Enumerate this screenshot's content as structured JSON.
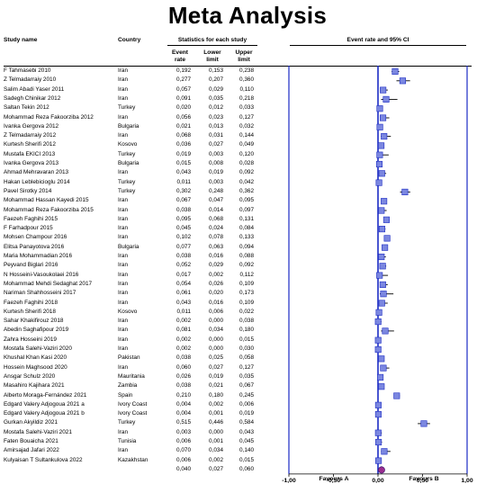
{
  "title": "Meta Analysis",
  "headers": {
    "study": "Study name",
    "country": "Country",
    "stats_group": "Statistics for each study",
    "event_rate": "Event rate",
    "lower": "Lower limit",
    "upper": "Upper limit",
    "forest": "Event rate and 95% CI"
  },
  "axis": {
    "xlim": [
      -1.0,
      1.0
    ],
    "ticks": [
      "-1,00",
      "-0,50",
      "0,00",
      "0,50",
      "1,00"
    ],
    "tick_values": [
      -1.0,
      -0.5,
      0.0,
      0.5,
      1.0
    ]
  },
  "favours": {
    "left": "Favours A",
    "right": "Favours B"
  },
  "colors": {
    "study_marker": "#7b87e0",
    "pooled_marker": "#9b2d8f",
    "zero_line": "#1b2bc4"
  },
  "chart_data": {
    "type": "forest",
    "title": "Meta Analysis",
    "xlabel": "Event rate and 95% CI",
    "xlim": [
      -1.0,
      1.0
    ],
    "studies": [
      {
        "name": "F Tahmasebi 2010",
        "country": "Iran",
        "rate": 0.192,
        "lower": 0.153,
        "upper": 0.238,
        "rate_s": "0,192",
        "lower_s": "0,153",
        "upper_s": "0,238"
      },
      {
        "name": "Z Telmadarraiy 2010",
        "country": "Iran",
        "rate": 0.277,
        "lower": 0.207,
        "upper": 0.36,
        "rate_s": "0,277",
        "lower_s": "0,207",
        "upper_s": "0,360"
      },
      {
        "name": "Salim Abadi Yaser 2011",
        "country": "Iran",
        "rate": 0.057,
        "lower": 0.029,
        "upper": 0.11,
        "rate_s": "0,057",
        "lower_s": "0,029",
        "upper_s": "0,110"
      },
      {
        "name": "Sadegh Chinikar 2012",
        "country": "Iran",
        "rate": 0.091,
        "lower": 0.035,
        "upper": 0.218,
        "rate_s": "0,091",
        "lower_s": "0,035",
        "upper_s": "0,218"
      },
      {
        "name": "Saltan Tekin 2012",
        "country": "Turkey",
        "rate": 0.02,
        "lower": 0.012,
        "upper": 0.033,
        "rate_s": "0,020",
        "lower_s": "0,012",
        "upper_s": "0,033"
      },
      {
        "name": "Mohammad Reza Fakoorziba 2012",
        "country": "Iran",
        "rate": 0.056,
        "lower": 0.023,
        "upper": 0.127,
        "rate_s": "0,056",
        "lower_s": "0,023",
        "upper_s": "0,127"
      },
      {
        "name": "Ivanka Gergova 2012",
        "country": "Bulgaria",
        "rate": 0.021,
        "lower": 0.013,
        "upper": 0.032,
        "rate_s": "0,021",
        "lower_s": "0,013",
        "upper_s": "0,032"
      },
      {
        "name": "Z Telmadarraiy 2012",
        "country": "Iran",
        "rate": 0.068,
        "lower": 0.031,
        "upper": 0.144,
        "rate_s": "0,068",
        "lower_s": "0,031",
        "upper_s": "0,144"
      },
      {
        "name": "Kurtesh Sherifi 2012",
        "country": "Kosovo",
        "rate": 0.036,
        "lower": 0.027,
        "upper": 0.049,
        "rate_s": "0,036",
        "lower_s": "0,027",
        "upper_s": "0,049"
      },
      {
        "name": "Mustafa EKICI 2013",
        "country": "Turkey",
        "rate": 0.019,
        "lower": 0.003,
        "upper": 0.12,
        "rate_s": "0,019",
        "lower_s": "0,003",
        "upper_s": "0,120"
      },
      {
        "name": "Ivanka Gergova 2013",
        "country": "Bulgaria",
        "rate": 0.015,
        "lower": 0.008,
        "upper": 0.028,
        "rate_s": "0,015",
        "lower_s": "0,008",
        "upper_s": "0,028"
      },
      {
        "name": "Ahmad Mehravaran 2013",
        "country": "Iran",
        "rate": 0.043,
        "lower": 0.019,
        "upper": 0.092,
        "rate_s": "0,043",
        "lower_s": "0,019",
        "upper_s": "0,092"
      },
      {
        "name": "Hakan Leblebicioglu 2014",
        "country": "Turkey",
        "rate": 0.011,
        "lower": 0.003,
        "upper": 0.042,
        "rate_s": "0,011",
        "lower_s": "0,003",
        "upper_s": "0,042"
      },
      {
        "name": "Pavel Sirotky 2014",
        "country": "Turkey",
        "rate": 0.302,
        "lower": 0.248,
        "upper": 0.362,
        "rate_s": "0,302",
        "lower_s": "0,248",
        "upper_s": "0,362"
      },
      {
        "name": "Mohammad Hassan Kayedi 2015",
        "country": "Iran",
        "rate": 0.067,
        "lower": 0.047,
        "upper": 0.095,
        "rate_s": "0,067",
        "lower_s": "0,047",
        "upper_s": "0,095"
      },
      {
        "name": "Mohammad Reza Fakoorziba 2015",
        "country": "Iran",
        "rate": 0.038,
        "lower": 0.014,
        "upper": 0.097,
        "rate_s": "0,038",
        "lower_s": "0,014",
        "upper_s": "0,097"
      },
      {
        "name": "Faezeh Faghihi 2015",
        "country": "Iran",
        "rate": 0.095,
        "lower": 0.068,
        "upper": 0.131,
        "rate_s": "0,095",
        "lower_s": "0,068",
        "upper_s": "0,131"
      },
      {
        "name": "F Farhadpour 2015",
        "country": "Iran",
        "rate": 0.045,
        "lower": 0.024,
        "upper": 0.084,
        "rate_s": "0,045",
        "lower_s": "0,024",
        "upper_s": "0,084"
      },
      {
        "name": "Mohsen Champour 2016",
        "country": "Iran",
        "rate": 0.102,
        "lower": 0.078,
        "upper": 0.133,
        "rate_s": "0,102",
        "lower_s": "0,078",
        "upper_s": "0,133"
      },
      {
        "name": "Elitsa Panayotova 2016",
        "country": "Bulgaria",
        "rate": 0.077,
        "lower": 0.063,
        "upper": 0.094,
        "rate_s": "0,077",
        "lower_s": "0,063",
        "upper_s": "0,094"
      },
      {
        "name": "Maria Mohammadian 2016",
        "country": "Iran",
        "rate": 0.038,
        "lower": 0.016,
        "upper": 0.088,
        "rate_s": "0,038",
        "lower_s": "0,016",
        "upper_s": "0,088"
      },
      {
        "name": "Peyvand Biglari 2016",
        "country": "Iran",
        "rate": 0.052,
        "lower": 0.029,
        "upper": 0.092,
        "rate_s": "0,052",
        "lower_s": "0,029",
        "upper_s": "0,092"
      },
      {
        "name": "N Hosseini-Vasoukolaei 2016",
        "country": "Iran",
        "rate": 0.017,
        "lower": 0.002,
        "upper": 0.112,
        "rate_s": "0,017",
        "lower_s": "0,002",
        "upper_s": "0,112"
      },
      {
        "name": "Mohammad Mehdi Sedaghat 2017",
        "country": "Iran",
        "rate": 0.054,
        "lower": 0.026,
        "upper": 0.109,
        "rate_s": "0,054",
        "lower_s": "0,026",
        "upper_s": "0,109"
      },
      {
        "name": "Nariman Shahhosseini 2017",
        "country": "Iran",
        "rate": 0.061,
        "lower": 0.02,
        "upper": 0.173,
        "rate_s": "0,061",
        "lower_s": "0,020",
        "upper_s": "0,173"
      },
      {
        "name": "Faezeh Faghihi 2018",
        "country": "Iran",
        "rate": 0.043,
        "lower": 0.016,
        "upper": 0.109,
        "rate_s": "0,043",
        "lower_s": "0,016",
        "upper_s": "0,109"
      },
      {
        "name": "Kurtesh Sherifi 2018",
        "country": "Kosovo",
        "rate": 0.011,
        "lower": 0.006,
        "upper": 0.022,
        "rate_s": "0,011",
        "lower_s": "0,006",
        "upper_s": "0,022"
      },
      {
        "name": "Sahar Khakifirouz 2018",
        "country": "Iran",
        "rate": 0.002,
        "lower": 0.0,
        "upper": 0.038,
        "rate_s": "0,002",
        "lower_s": "0,000",
        "upper_s": "0,038"
      },
      {
        "name": "Abedin Saghafipour 2019",
        "country": "Iran",
        "rate": 0.081,
        "lower": 0.034,
        "upper": 0.18,
        "rate_s": "0,081",
        "lower_s": "0,034",
        "upper_s": "0,180"
      },
      {
        "name": "Zahra Hosseini 2019",
        "country": "Iran",
        "rate": 0.002,
        "lower": 0.0,
        "upper": 0.015,
        "rate_s": "0,002",
        "lower_s": "0,000",
        "upper_s": "0,015"
      },
      {
        "name": "Mostafa Salehi-Vaziri 2020",
        "country": "Iran",
        "rate": 0.002,
        "lower": 0.0,
        "upper": 0.03,
        "rate_s": "0,002",
        "lower_s": "0,000",
        "upper_s": "0,030"
      },
      {
        "name": "Khushal Khan Kasi 2020",
        "country": "Pakistan",
        "rate": 0.038,
        "lower": 0.025,
        "upper": 0.058,
        "rate_s": "0,038",
        "lower_s": "0,025",
        "upper_s": "0,058"
      },
      {
        "name": "Hossein Maghsood 2020",
        "country": "Iran",
        "rate": 0.06,
        "lower": 0.027,
        "upper": 0.127,
        "rate_s": "0,060",
        "lower_s": "0,027",
        "upper_s": "0,127"
      },
      {
        "name": "Ansgar Schulz 2020",
        "country": "Mauritania",
        "rate": 0.026,
        "lower": 0.019,
        "upper": 0.035,
        "rate_s": "0,026",
        "lower_s": "0,019",
        "upper_s": "0,035"
      },
      {
        "name": "Masahiro Kajihara 2021",
        "country": "Zambia",
        "rate": 0.038,
        "lower": 0.021,
        "upper": 0.067,
        "rate_s": "0,038",
        "lower_s": "0,021",
        "upper_s": "0,067"
      },
      {
        "name": "Alberto Moraga-Fernández 2021",
        "country": "Spain",
        "rate": 0.21,
        "lower": 0.18,
        "upper": 0.245,
        "rate_s": "0,210",
        "lower_s": "0,180",
        "upper_s": "0,245"
      },
      {
        "name": "Edgard Valery Adjogoua 2021 a",
        "country": "Ivory Coast",
        "rate": 0.004,
        "lower": 0.002,
        "upper": 0.006,
        "rate_s": "0,004",
        "lower_s": "0,002",
        "upper_s": "0,006"
      },
      {
        "name": "Edgard Valery Adjogoua 2021 b",
        "country": "Ivory Coast",
        "rate": 0.004,
        "lower": 0.001,
        "upper": 0.019,
        "rate_s": "0,004",
        "lower_s": "0,001",
        "upper_s": "0,019"
      },
      {
        "name": "Gurkan Akyildiz 2021",
        "country": "Turkey",
        "rate": 0.515,
        "lower": 0.446,
        "upper": 0.584,
        "rate_s": "0,515",
        "lower_s": "0,446",
        "upper_s": "0,584"
      },
      {
        "name": "Mostafa Salehi-Vaziri 2021",
        "country": "Iran",
        "rate": 0.003,
        "lower": 0.0,
        "upper": 0.043,
        "rate_s": "0,003",
        "lower_s": "0,000",
        "upper_s": "0,043"
      },
      {
        "name": "Faten Bouaicha 2021",
        "country": "Tunisia",
        "rate": 0.006,
        "lower": 0.001,
        "upper": 0.045,
        "rate_s": "0,006",
        "lower_s": "0,001",
        "upper_s": "0,045"
      },
      {
        "name": "Amirsajad Jafari 2022",
        "country": "Iran",
        "rate": 0.07,
        "lower": 0.034,
        "upper": 0.14,
        "rate_s": "0,070",
        "lower_s": "0,034",
        "upper_s": "0,140"
      },
      {
        "name": "Kulyaisan T Sultankulova 2022",
        "country": "Kazakhstan",
        "rate": 0.006,
        "lower": 0.002,
        "upper": 0.015,
        "rate_s": "0,006",
        "lower_s": "0,002",
        "upper_s": "0,015"
      }
    ],
    "pooled": {
      "rate": 0.04,
      "lower": 0.027,
      "upper": 0.06,
      "rate_s": "0,040",
      "lower_s": "0,027",
      "upper_s": "0,060"
    }
  }
}
